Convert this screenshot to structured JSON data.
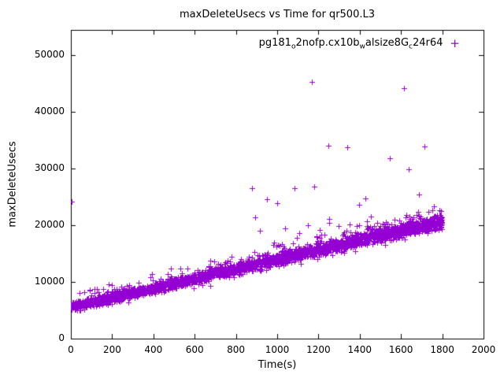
{
  "chart_data": {
    "type": "scatter",
    "title": "maxDeleteUsecs vs Time for qr500.L3",
    "xlabel": "Time(s)",
    "ylabel": "maxDeleteUsecs",
    "xlim": [
      0,
      2000
    ],
    "ylim": [
      0,
      54500
    ],
    "xticks": [
      0,
      200,
      400,
      600,
      800,
      1000,
      1200,
      1400,
      1600,
      1800,
      2000
    ],
    "yticks": [
      0,
      10000,
      20000,
      30000,
      40000,
      50000
    ],
    "grid": false,
    "marker": "plus",
    "series_color": "#9400D3",
    "legend": {
      "position": "top-center-right-inside",
      "raw_label": "pg181_o2nofp.cx10b_walsize8G_c24r64",
      "segments": [
        {
          "text": "pg181",
          "sub": false
        },
        {
          "text": "o",
          "sub": true
        },
        {
          "text": "2nofp.cx10b",
          "sub": false
        },
        {
          "text": "w",
          "sub": true
        },
        {
          "text": "alsize8G",
          "sub": false
        },
        {
          "text": "c",
          "sub": true
        },
        {
          "text": "24r64",
          "sub": false
        }
      ]
    },
    "band": {
      "description": "dense linear band of samples rising steadily over the run",
      "n_points": 3200,
      "x_start": 0,
      "x_end": 1800,
      "y_start": 5600,
      "y_end": 20800,
      "noise_sd_start": 420,
      "noise_sd_end": 650,
      "upward_spike_prob": 0.045,
      "upward_spike_max": 2300,
      "seed": 12345
    },
    "outliers": [
      [
        3,
        24200
      ],
      [
        878,
        26600
      ],
      [
        893,
        21350
      ],
      [
        915,
        19050
      ],
      [
        950,
        24600
      ],
      [
        1000,
        23850
      ],
      [
        1040,
        19400
      ],
      [
        1085,
        26500
      ],
      [
        1105,
        18600
      ],
      [
        1150,
        20000
      ],
      [
        1168,
        45300
      ],
      [
        1180,
        26800
      ],
      [
        1205,
        19200
      ],
      [
        1247,
        34100
      ],
      [
        1252,
        21100
      ],
      [
        1297,
        19900
      ],
      [
        1340,
        33800
      ],
      [
        1350,
        20200
      ],
      [
        1398,
        23600
      ],
      [
        1428,
        24800
      ],
      [
        1455,
        21600
      ],
      [
        1470,
        19900
      ],
      [
        1500,
        19950
      ],
      [
        1520,
        20100
      ],
      [
        1545,
        31900
      ],
      [
        1570,
        21000
      ],
      [
        1600,
        20400
      ],
      [
        1615,
        44200
      ],
      [
        1638,
        29900
      ],
      [
        1640,
        21500
      ],
      [
        1688,
        25400
      ],
      [
        1715,
        33900
      ],
      [
        1758,
        23400
      ],
      [
        1788,
        22600
      ]
    ]
  }
}
